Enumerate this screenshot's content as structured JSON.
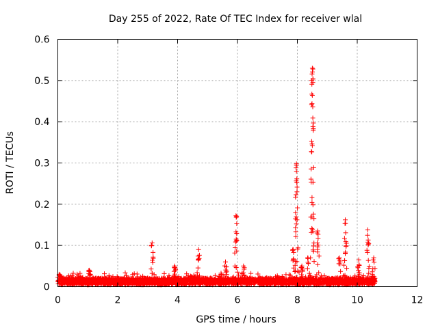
{
  "chart_data": {
    "type": "scatter",
    "title": "Day 255 of 2022, Rate Of TEC Index for receiver wlal",
    "xlabel": "GPS time / hours",
    "ylabel": "ROTI / TECUs",
    "xlim": [
      0,
      12
    ],
    "ylim": [
      0,
      0.6
    ],
    "xticks": [
      0,
      2,
      4,
      6,
      8,
      10,
      12
    ],
    "xtick_labels": [
      "0",
      "2",
      "4",
      "6",
      "8",
      "10",
      "12"
    ],
    "yticks": [
      0,
      0.1,
      0.2,
      0.3,
      0.4,
      0.5,
      0.6
    ],
    "ytick_labels": [
      "0",
      "0.1",
      "0.2",
      "0.3",
      "0.4",
      "0.5",
      "0.6"
    ],
    "grid": true,
    "marker": "plus",
    "color": "#ff0000",
    "x_range_data": [
      0.0,
      10.6
    ],
    "baseline_level": 0.015,
    "peaks": [
      {
        "x": 0.05,
        "y": 0.03
      },
      {
        "x": 1.05,
        "y": 0.04
      },
      {
        "x": 3.15,
        "y": 0.106
      },
      {
        "x": 3.9,
        "y": 0.05
      },
      {
        "x": 4.7,
        "y": 0.09
      },
      {
        "x": 5.6,
        "y": 0.06
      },
      {
        "x": 5.95,
        "y": 0.172
      },
      {
        "x": 6.2,
        "y": 0.05
      },
      {
        "x": 7.85,
        "y": 0.09
      },
      {
        "x": 7.97,
        "y": 0.298
      },
      {
        "x": 8.15,
        "y": 0.05
      },
      {
        "x": 8.35,
        "y": 0.07
      },
      {
        "x": 8.5,
        "y": 0.53
      },
      {
        "x": 8.68,
        "y": 0.135
      },
      {
        "x": 9.4,
        "y": 0.07
      },
      {
        "x": 9.6,
        "y": 0.162
      },
      {
        "x": 10.05,
        "y": 0.065
      },
      {
        "x": 10.35,
        "y": 0.138
      },
      {
        "x": 10.55,
        "y": 0.07
      }
    ]
  }
}
